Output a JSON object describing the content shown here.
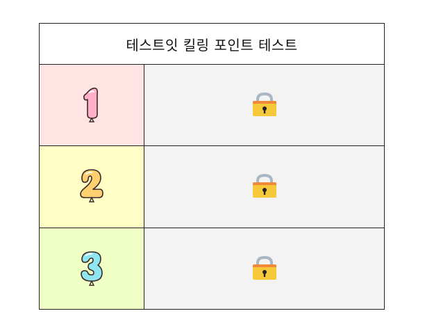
{
  "title": "테스트잇 킬링 포인트 테스트",
  "rows": [
    {
      "number": "1",
      "bg": "#ffe4e4",
      "balloon_fill": "#ffb0c8",
      "icon": "balloon-number-1-icon",
      "lock_icon": "padlock-icon"
    },
    {
      "number": "2",
      "bg": "#fffec4",
      "balloon_fill": "#ffd070",
      "icon": "balloon-number-2-icon",
      "lock_icon": "padlock-icon"
    },
    {
      "number": "3",
      "bg": "#f0ffc4",
      "balloon_fill": "#8fe6f0",
      "icon": "balloon-number-3-icon",
      "lock_icon": "padlock-icon"
    }
  ],
  "colors": {
    "lock_body": "#f7c83a",
    "lock_top": "#f08a3a",
    "lock_shackle": "#a9b6c4",
    "border": "#222222"
  }
}
